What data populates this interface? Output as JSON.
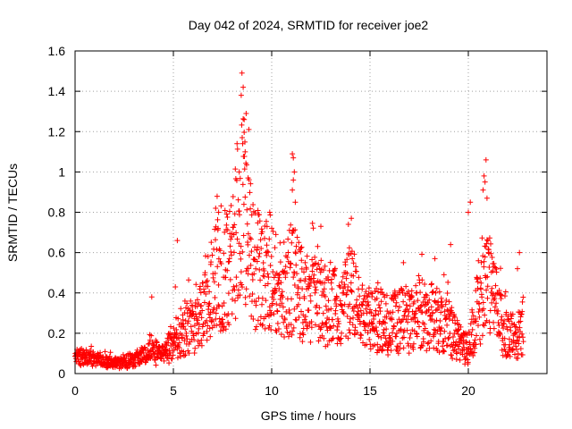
{
  "chart_data": {
    "type": "scatter",
    "title": "Day 042 of 2024, SRMTID for receiver joe2",
    "xlabel": "GPS time / hours",
    "ylabel": "SRMTID / TECUs",
    "xlim": [
      0,
      24
    ],
    "ylim": [
      0,
      1.6
    ],
    "xticks": [
      0,
      5,
      10,
      15,
      20
    ],
    "xtick_labels": [
      "0",
      "5",
      "10",
      "15",
      "20"
    ],
    "yticks": [
      0,
      0.2,
      0.4,
      0.6,
      0.8,
      1,
      1.2,
      1.4,
      1.6
    ],
    "ytick_labels": [
      "0",
      "0.2",
      "0.4",
      "0.6",
      "0.8",
      "1",
      "1.2",
      "1.4",
      "1.6"
    ],
    "grid": true,
    "marker": "+",
    "marker_color": "#ff0000",
    "series": [
      {
        "name": "SRMTID",
        "profile": [
          {
            "x": 0.0,
            "y": 0.08
          },
          {
            "x": 0.5,
            "y": 0.08
          },
          {
            "x": 1.0,
            "y": 0.08
          },
          {
            "x": 1.5,
            "y": 0.06
          },
          {
            "x": 2.0,
            "y": 0.05
          },
          {
            "x": 2.5,
            "y": 0.06
          },
          {
            "x": 3.0,
            "y": 0.07
          },
          {
            "x": 3.5,
            "y": 0.09
          },
          {
            "x": 4.0,
            "y": 0.13
          },
          {
            "x": 4.5,
            "y": 0.1
          },
          {
            "x": 5.0,
            "y": 0.15
          },
          {
            "x": 5.5,
            "y": 0.22
          },
          {
            "x": 6.0,
            "y": 0.24
          },
          {
            "x": 6.5,
            "y": 0.3
          },
          {
            "x": 7.0,
            "y": 0.45
          },
          {
            "x": 7.5,
            "y": 0.5
          },
          {
            "x": 8.0,
            "y": 0.55
          },
          {
            "x": 8.5,
            "y": 0.85
          },
          {
            "x": 9.0,
            "y": 0.55
          },
          {
            "x": 9.5,
            "y": 0.5
          },
          {
            "x": 10.0,
            "y": 0.45
          },
          {
            "x": 10.5,
            "y": 0.42
          },
          {
            "x": 11.0,
            "y": 0.48
          },
          {
            "x": 11.5,
            "y": 0.4
          },
          {
            "x": 12.0,
            "y": 0.38
          },
          {
            "x": 12.5,
            "y": 0.36
          },
          {
            "x": 13.0,
            "y": 0.33
          },
          {
            "x": 13.5,
            "y": 0.32
          },
          {
            "x": 14.0,
            "y": 0.42
          },
          {
            "x": 14.5,
            "y": 0.28
          },
          {
            "x": 15.0,
            "y": 0.27
          },
          {
            "x": 15.5,
            "y": 0.26
          },
          {
            "x": 16.0,
            "y": 0.24
          },
          {
            "x": 16.5,
            "y": 0.27
          },
          {
            "x": 17.0,
            "y": 0.26
          },
          {
            "x": 17.5,
            "y": 0.3
          },
          {
            "x": 18.0,
            "y": 0.28
          },
          {
            "x": 18.5,
            "y": 0.26
          },
          {
            "x": 19.0,
            "y": 0.24
          },
          {
            "x": 19.5,
            "y": 0.15
          },
          {
            "x": 20.0,
            "y": 0.12
          },
          {
            "x": 20.5,
            "y": 0.35
          },
          {
            "x": 21.0,
            "y": 0.45
          },
          {
            "x": 21.5,
            "y": 0.3
          },
          {
            "x": 22.0,
            "y": 0.18
          },
          {
            "x": 22.5,
            "y": 0.2
          },
          {
            "x": 22.8,
            "y": 0.2
          }
        ],
        "peaks": [
          {
            "x": 8.55,
            "y": 1.42
          },
          {
            "x": 8.45,
            "y": 1.38
          },
          {
            "x": 8.7,
            "y": 1.29
          },
          {
            "x": 8.6,
            "y": 1.26
          },
          {
            "x": 8.5,
            "y": 1.17
          },
          {
            "x": 8.65,
            "y": 1.1
          },
          {
            "x": 8.35,
            "y": 1.0
          },
          {
            "x": 8.8,
            "y": 0.97
          },
          {
            "x": 11.05,
            "y": 1.09
          },
          {
            "x": 11.1,
            "y": 1.07
          },
          {
            "x": 11.15,
            "y": 1.0
          },
          {
            "x": 11.1,
            "y": 0.96
          },
          {
            "x": 11.05,
            "y": 0.91
          },
          {
            "x": 11.2,
            "y": 0.85
          },
          {
            "x": 20.9,
            "y": 1.06
          },
          {
            "x": 20.8,
            "y": 0.98
          },
          {
            "x": 20.85,
            "y": 0.95
          },
          {
            "x": 20.75,
            "y": 0.91
          },
          {
            "x": 20.95,
            "y": 0.87
          },
          {
            "x": 20.1,
            "y": 0.85
          },
          {
            "x": 20.0,
            "y": 0.8
          },
          {
            "x": 14.05,
            "y": 0.77
          },
          {
            "x": 13.9,
            "y": 0.74
          },
          {
            "x": 12.5,
            "y": 0.73
          },
          {
            "x": 7.15,
            "y": 0.82
          },
          {
            "x": 7.3,
            "y": 0.8
          },
          {
            "x": 9.9,
            "y": 0.8
          },
          {
            "x": 5.2,
            "y": 0.66
          },
          {
            "x": 5.1,
            "y": 0.43
          },
          {
            "x": 3.9,
            "y": 0.38
          },
          {
            "x": 22.6,
            "y": 0.6
          },
          {
            "x": 22.5,
            "y": 0.52
          },
          {
            "x": 16.7,
            "y": 0.55
          },
          {
            "x": 19.1,
            "y": 0.64
          },
          {
            "x": 18.3,
            "y": 0.57
          },
          {
            "x": 15.4,
            "y": 0.45
          }
        ]
      }
    ]
  }
}
